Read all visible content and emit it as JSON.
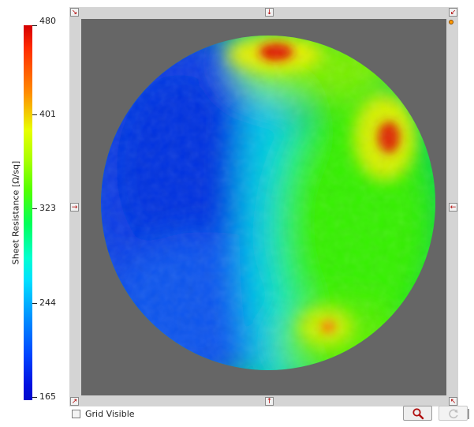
{
  "colorbar": {
    "label": "Sheet Resistance [Ω/sq]",
    "ticks": [
      "480",
      "401",
      "323",
      "244",
      "165"
    ]
  },
  "heatmap": {
    "min": 165,
    "max": 480,
    "colormap": "jet",
    "background_color": "#666666"
  },
  "controls": {
    "grid_visible_label": "Grid Visible",
    "grid_visible_checked": false,
    "zoom_icon": "magnifier-icon",
    "refresh_icon": "refresh-icon"
  },
  "arrows": {
    "top_left": "↘",
    "top_center": "↓",
    "top_right": "↙",
    "left_center": "→",
    "right_center": "←",
    "bottom_left": "↗",
    "bottom_center": "↑",
    "bottom_right": "↖"
  }
}
